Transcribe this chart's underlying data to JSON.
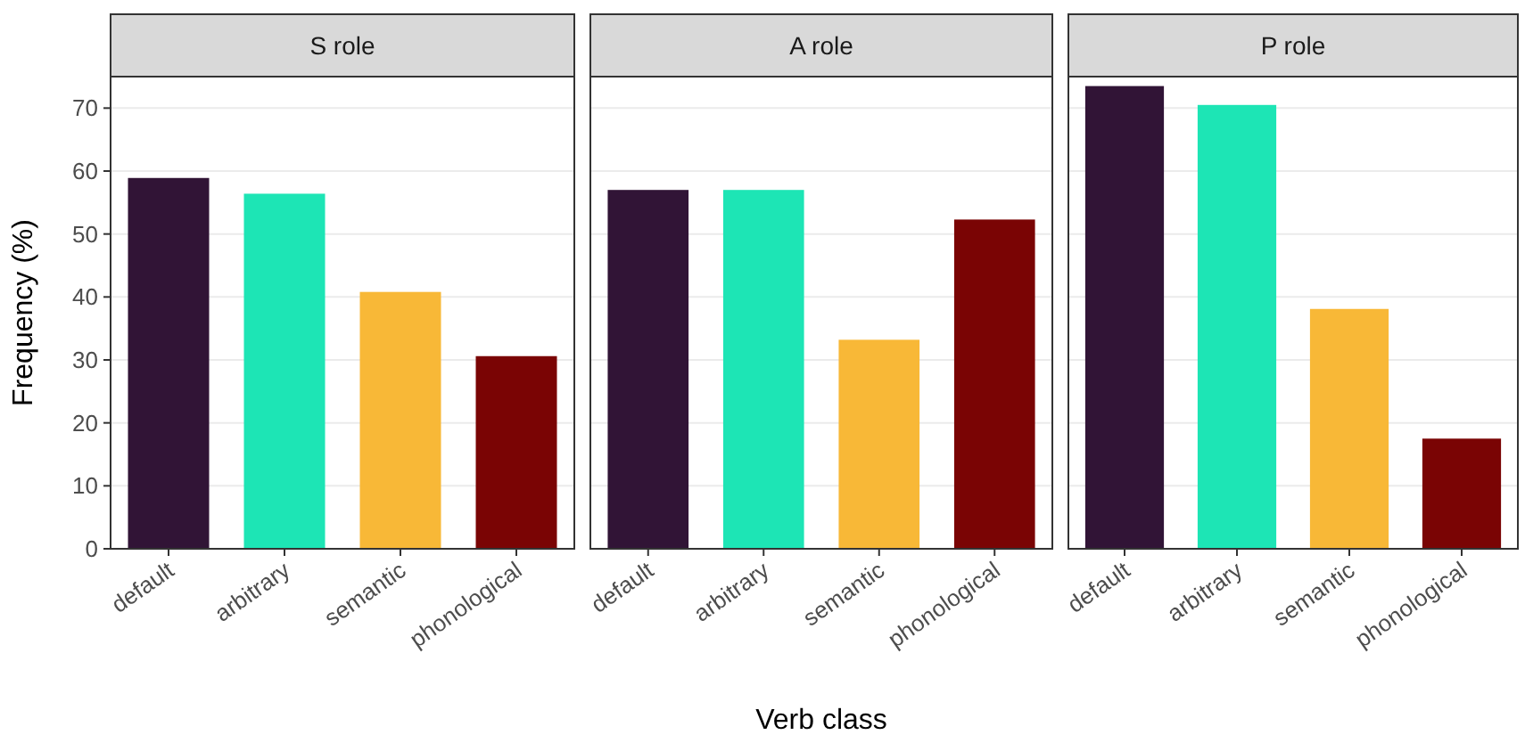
{
  "chart_data": [
    {
      "type": "bar",
      "title": "S role",
      "ylabel": "Frequency (%)",
      "categories": [
        "default",
        "arbitrary",
        "semantic",
        "phonological"
      ],
      "values": [
        58.9,
        56.4,
        40.8,
        30.6
      ],
      "colors": [
        "#311436",
        "#1de5b5",
        "#f8b837",
        "#7a0404"
      ],
      "ylim": [
        0,
        75
      ],
      "yticks": [
        0,
        10,
        20,
        30,
        40,
        50,
        60,
        70
      ],
      "grid": "y"
    },
    {
      "type": "bar",
      "title": "A role",
      "xlabel": "Verb class",
      "categories": [
        "default",
        "arbitrary",
        "semantic",
        "phonological"
      ],
      "values": [
        57.0,
        57.0,
        33.2,
        52.3
      ],
      "colors": [
        "#311436",
        "#1de5b5",
        "#f8b837",
        "#7a0404"
      ],
      "ylim": [
        0,
        75
      ],
      "yticks": [
        0,
        10,
        20,
        30,
        40,
        50,
        60,
        70
      ],
      "grid": "y",
      "tick_labels": "x"
    },
    {
      "type": "bar",
      "title": "P role",
      "categories": [
        "default",
        "arbitrary",
        "semantic",
        "phonological"
      ],
      "values": [
        73.5,
        70.5,
        38.1,
        17.5
      ],
      "colors": [
        "#311436",
        "#1de5b5",
        "#f8b837",
        "#7a0404"
      ],
      "ylim": [
        0,
        75
      ],
      "yticks": [
        0,
        10,
        20,
        30,
        40,
        50,
        60,
        70
      ],
      "grid": "y",
      "tick_labels": "x"
    }
  ]
}
